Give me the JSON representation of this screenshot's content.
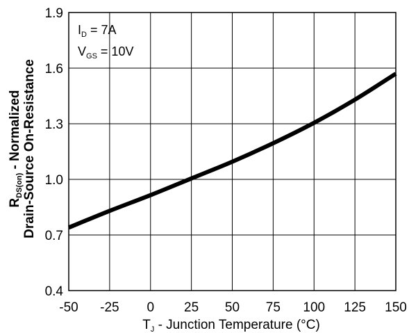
{
  "chart_data": {
    "type": "line",
    "title": "",
    "x_label": {
      "main": "T",
      "sub": "J",
      "rest": " - Junction Temperature (°C)"
    },
    "y_label": {
      "line1": {
        "main": "R",
        "sub": "DS(on)",
        "rest": " - Normalized"
      },
      "line2": "Drain-Source On-Resistance"
    },
    "annotations": [
      {
        "main": "I",
        "sub": "D",
        "rest": " = 7A"
      },
      {
        "main": "V",
        "sub": "GS",
        "rest": " = 10V"
      }
    ],
    "xlim": [
      -50,
      150
    ],
    "ylim": [
      0.4,
      1.9
    ],
    "x_ticks": [
      -50,
      -25,
      0,
      25,
      50,
      75,
      100,
      125,
      150
    ],
    "x_tick_labels": [
      "-50",
      "-25",
      "0",
      "25",
      "50",
      "75",
      "100",
      "125",
      "150"
    ],
    "y_ticks": [
      0.4,
      0.7,
      1.0,
      1.3,
      1.6,
      1.9
    ],
    "y_tick_labels": [
      "0.4",
      "0.7",
      "1.0",
      "1.3",
      "1.6",
      "1.9"
    ],
    "grid": true,
    "series": [
      {
        "x": [
          -50,
          -25,
          0,
          25,
          50,
          75,
          100,
          125,
          150
        ],
        "y": [
          0.74,
          0.83,
          0.915,
          1.005,
          1.095,
          1.195,
          1.305,
          1.43,
          1.57
        ]
      }
    ]
  }
}
